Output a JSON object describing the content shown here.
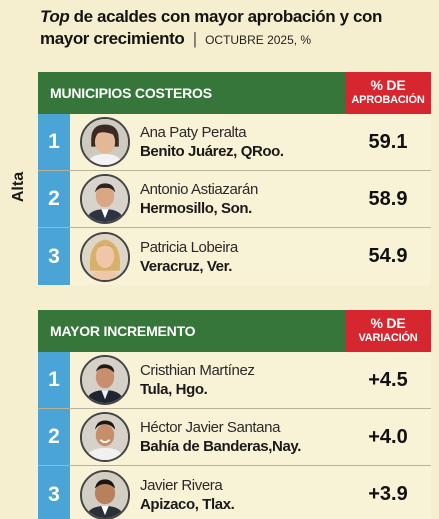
{
  "title": {
    "emph": "Top",
    "main": "de acaldes con mayor aprobación y con mayor crecimiento",
    "separator": "|",
    "sub": "OCTUBRE 2025, %"
  },
  "side_label": "Alta",
  "sections": [
    {
      "header": "MUNICIPIOS COSTEROS",
      "metric_line1": "% DE",
      "metric_line2": "APROBACIÓN",
      "rows": [
        {
          "rank": "1",
          "name": "Ana Paty Peralta",
          "place": "Benito Juárez, QRoo.",
          "value": "59.1",
          "avatar": "female-short-hair-portrait"
        },
        {
          "rank": "2",
          "name": "Antonio Astiazarán",
          "place": "Hermosillo, Son.",
          "value": "58.9",
          "avatar": "male-suit-portrait"
        },
        {
          "rank": "3",
          "name": "Patricia Lobeira",
          "place": "Veracruz, Ver.",
          "value": "54.9",
          "avatar": "female-blonde-portrait"
        }
      ]
    },
    {
      "header": "MAYOR INCREMENTO",
      "metric_line1": "% DE",
      "metric_line2": "VARIACIÓN",
      "rows": [
        {
          "rank": "1",
          "name": "Cristhian Martínez",
          "place": "Tula, Hgo.",
          "value": "+4.5",
          "avatar": "male-suit-portrait"
        },
        {
          "rank": "2",
          "name": "Héctor Javier Santana",
          "place": "Bahía de Banderas,Nay.",
          "value": "+4.0",
          "avatar": "male-smiling-portrait"
        },
        {
          "rank": "3",
          "name": "Javier Rivera",
          "place": "Apizaco, Tlax.",
          "value": "+3.9",
          "avatar": "male-suit-portrait"
        }
      ]
    }
  ],
  "colors": {
    "background": "#f6efcf",
    "header_green": "#37763a",
    "header_red": "#d6262f",
    "rank_blue": "#4aa4d6"
  }
}
